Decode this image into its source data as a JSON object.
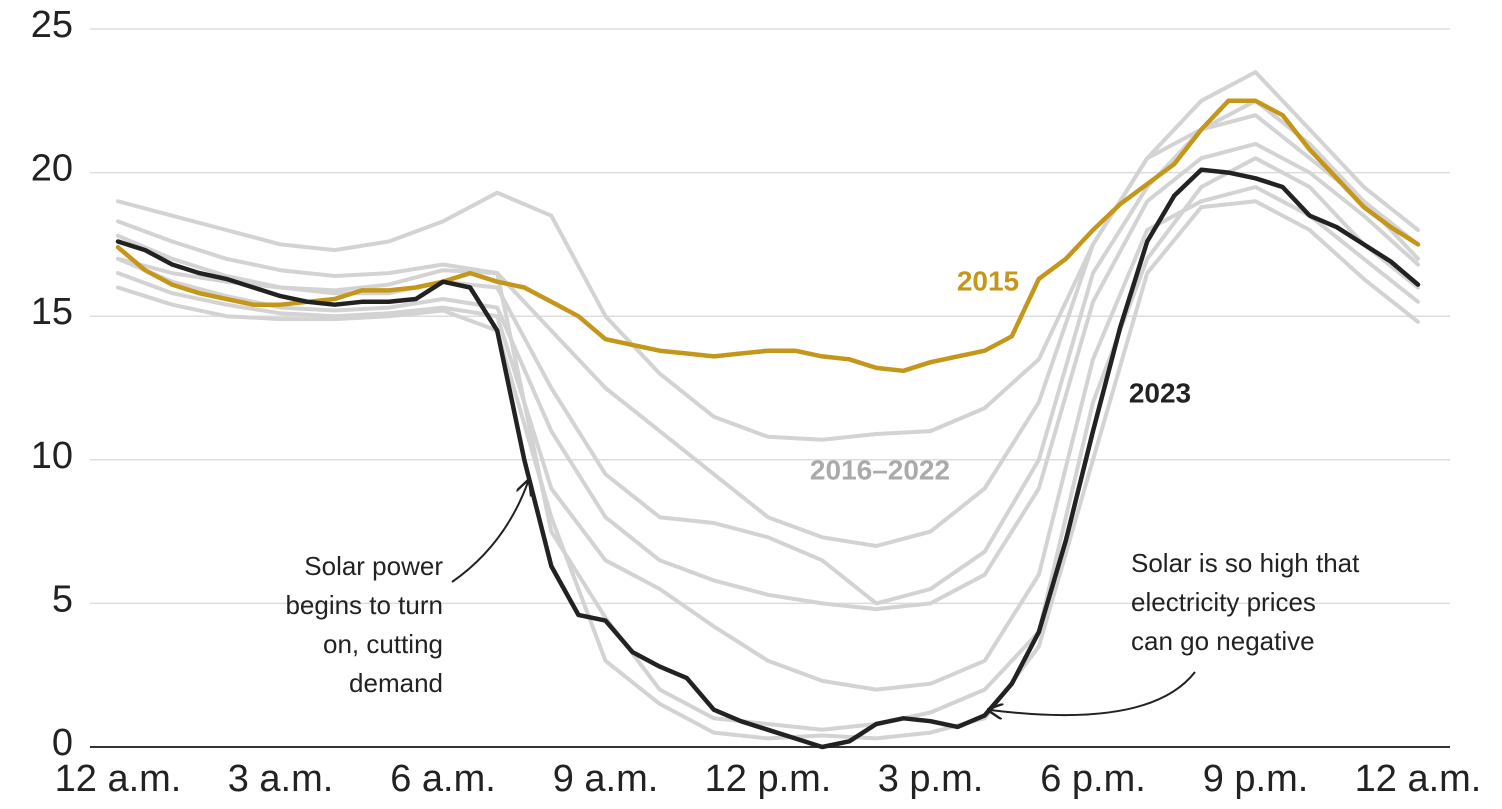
{
  "chart_data": {
    "type": "line",
    "x": [
      0,
      0.5,
      1,
      1.5,
      2,
      2.5,
      3,
      3.5,
      4,
      4.5,
      5,
      5.5,
      6,
      6.5,
      7,
      7.5,
      8,
      8.5,
      9,
      9.5,
      10,
      10.5,
      11,
      11.5,
      12,
      12.5,
      13,
      13.5,
      14,
      14.5,
      15,
      15.5,
      16,
      16.5,
      17,
      17.5,
      18,
      18.5,
      19,
      19.5,
      20,
      20.5,
      21,
      21.5,
      22,
      22.5,
      23,
      23.5,
      24
    ],
    "series": [
      {
        "name": "2015",
        "color": "#c4961a",
        "values": [
          17.4,
          16.6,
          16.1,
          15.8,
          15.6,
          15.4,
          15.4,
          15.5,
          15.6,
          15.9,
          15.9,
          16.0,
          16.2,
          16.5,
          16.2,
          16.0,
          15.5,
          15.0,
          14.2,
          14.0,
          13.8,
          13.7,
          13.6,
          13.7,
          13.8,
          13.8,
          13.6,
          13.5,
          13.2,
          13.1,
          13.4,
          13.6,
          13.8,
          14.3,
          16.3,
          17.0,
          18.0,
          18.9,
          19.6,
          20.3,
          21.5,
          22.5,
          22.5,
          22.0,
          20.8,
          19.8,
          18.8,
          18.1,
          17.5
        ]
      },
      {
        "name": "2023",
        "color": "#222222",
        "values": [
          17.6,
          17.3,
          16.8,
          16.5,
          16.3,
          16.0,
          15.7,
          15.5,
          15.4,
          15.5,
          15.5,
          15.6,
          16.2,
          16.0,
          14.5,
          10.0,
          6.3,
          4.6,
          4.4,
          3.3,
          2.8,
          2.4,
          1.3,
          0.9,
          0.6,
          0.3,
          0,
          0.2,
          0.8,
          1.0,
          0.9,
          0.7,
          1.1,
          2.2,
          4.0,
          7.2,
          11.0,
          14.6,
          17.6,
          19.2,
          20.1,
          20.0,
          19.8,
          19.5,
          18.5,
          18.1,
          17.5,
          16.9,
          16.1
        ]
      }
    ],
    "background_series": {
      "label": "2016–2022",
      "color": "#d3d3d3",
      "x": [
        0,
        1,
        2,
        3,
        4,
        5,
        6,
        7,
        8,
        9,
        10,
        11,
        12,
        13,
        14,
        15,
        16,
        17,
        18,
        19,
        20,
        21,
        22,
        23,
        24
      ],
      "lines": [
        [
          19.0,
          18.5,
          18.0,
          17.5,
          17.3,
          17.6,
          18.3,
          19.3,
          18.5,
          15.0,
          13.0,
          11.5,
          10.8,
          10.7,
          10.9,
          11.0,
          11.8,
          13.5,
          17.5,
          20.5,
          21.5,
          22.0,
          20.5,
          19.0,
          17.5
        ],
        [
          18.3,
          17.6,
          17.0,
          16.6,
          16.4,
          16.5,
          16.8,
          16.5,
          14.5,
          12.5,
          11.0,
          9.5,
          8.0,
          7.3,
          7.0,
          7.5,
          9.0,
          12.0,
          17.5,
          20.5,
          22.5,
          23.5,
          21.5,
          19.5,
          18.0
        ],
        [
          17.8,
          17.0,
          16.4,
          16.0,
          15.8,
          15.8,
          16.2,
          16.0,
          12.5,
          9.5,
          8.0,
          7.8,
          7.3,
          6.5,
          5.0,
          5.5,
          6.8,
          10.0,
          16.5,
          19.5,
          21.5,
          22.5,
          21.0,
          19.0,
          17.0
        ],
        [
          17.0,
          16.2,
          15.7,
          15.3,
          15.2,
          15.3,
          15.6,
          15.3,
          11.0,
          8.0,
          6.5,
          5.8,
          5.3,
          5.0,
          4.8,
          5.0,
          6.0,
          9.0,
          15.5,
          19.0,
          20.5,
          21.0,
          20.0,
          18.5,
          16.8
        ],
        [
          16.5,
          15.8,
          15.4,
          15.1,
          15.0,
          15.1,
          15.3,
          15.0,
          9.0,
          6.5,
          5.5,
          4.2,
          3.0,
          2.3,
          2.0,
          2.2,
          3.0,
          6.0,
          13.5,
          18.0,
          19.0,
          19.5,
          18.5,
          17.0,
          15.5
        ],
        [
          16.0,
          15.4,
          15.0,
          14.9,
          14.9,
          15.0,
          15.2,
          14.5,
          8.0,
          3.0,
          1.5,
          0.5,
          0.3,
          0.4,
          0.3,
          0.5,
          1.0,
          3.5,
          10.0,
          16.5,
          18.8,
          19.0,
          18.0,
          16.3,
          14.8
        ],
        [
          17.0,
          16.5,
          16.2,
          16.0,
          15.9,
          16.1,
          16.6,
          16.5,
          7.5,
          4.5,
          2.0,
          1.0,
          0.8,
          0.6,
          0.8,
          1.2,
          2.0,
          4.0,
          12.0,
          17.0,
          19.5,
          20.5,
          19.5,
          17.5,
          16.0
        ]
      ]
    },
    "xlim": [
      0,
      24
    ],
    "xticks": [
      {
        "value": 0,
        "label": "12 a.m."
      },
      {
        "value": 3,
        "label": "3 a.m."
      },
      {
        "value": 6,
        "label": "6 a.m."
      },
      {
        "value": 9,
        "label": "9 a.m."
      },
      {
        "value": 12,
        "label": "12 p.m."
      },
      {
        "value": 15,
        "label": "3 p.m."
      },
      {
        "value": 18,
        "label": "6 p.m."
      },
      {
        "value": 21,
        "label": "9 p.m."
      },
      {
        "value": 24,
        "label": "12 a.m."
      }
    ],
    "ylim": [
      0,
      25
    ],
    "yticks": [
      0,
      5,
      10,
      15,
      20,
      25
    ],
    "grid": true,
    "annotations": [
      {
        "lines": [
          "Solar power",
          "begins to turn",
          "on, cutting",
          "demand"
        ]
      },
      {
        "lines": [
          "Solar is so high that",
          "electricity prices",
          "can go negative"
        ]
      }
    ]
  }
}
